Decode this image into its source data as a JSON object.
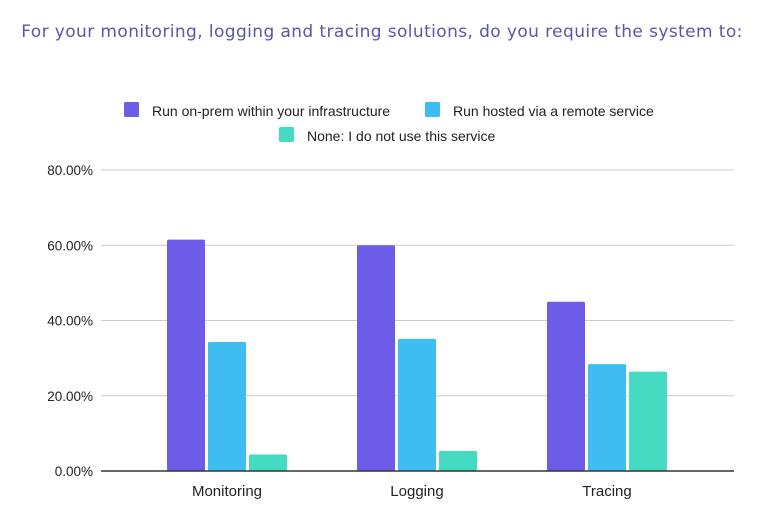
{
  "chart_data": {
    "type": "bar",
    "title": "For your monitoring, logging and tracing solutions, do you require the system to:",
    "categories": [
      "Monitoring",
      "Logging",
      "Tracing"
    ],
    "series": [
      {
        "name": "Run on-prem within your infrastructure",
        "values": [
          61.5,
          60.0,
          45.0
        ],
        "color": "#6c5ce7"
      },
      {
        "name": "Run hosted via a remote service",
        "values": [
          34.3,
          35.1,
          28.4
        ],
        "color": "#3dbdf0"
      },
      {
        "name": "None: I do not use this service",
        "values": [
          4.4,
          5.3,
          26.4
        ],
        "color": "#45dbc2"
      }
    ],
    "ylim": [
      0,
      80
    ],
    "yticks": [
      "0.00%",
      "20.00%",
      "40.00%",
      "60.00%",
      "80.00%"
    ],
    "ytick_values": [
      0,
      20,
      40,
      60,
      80
    ],
    "grid": true,
    "legend_position": "top",
    "xlabel": "",
    "ylabel": ""
  },
  "colors": {
    "title": "#5b57a8",
    "grid": "#cccccc",
    "axis": "#333333"
  }
}
